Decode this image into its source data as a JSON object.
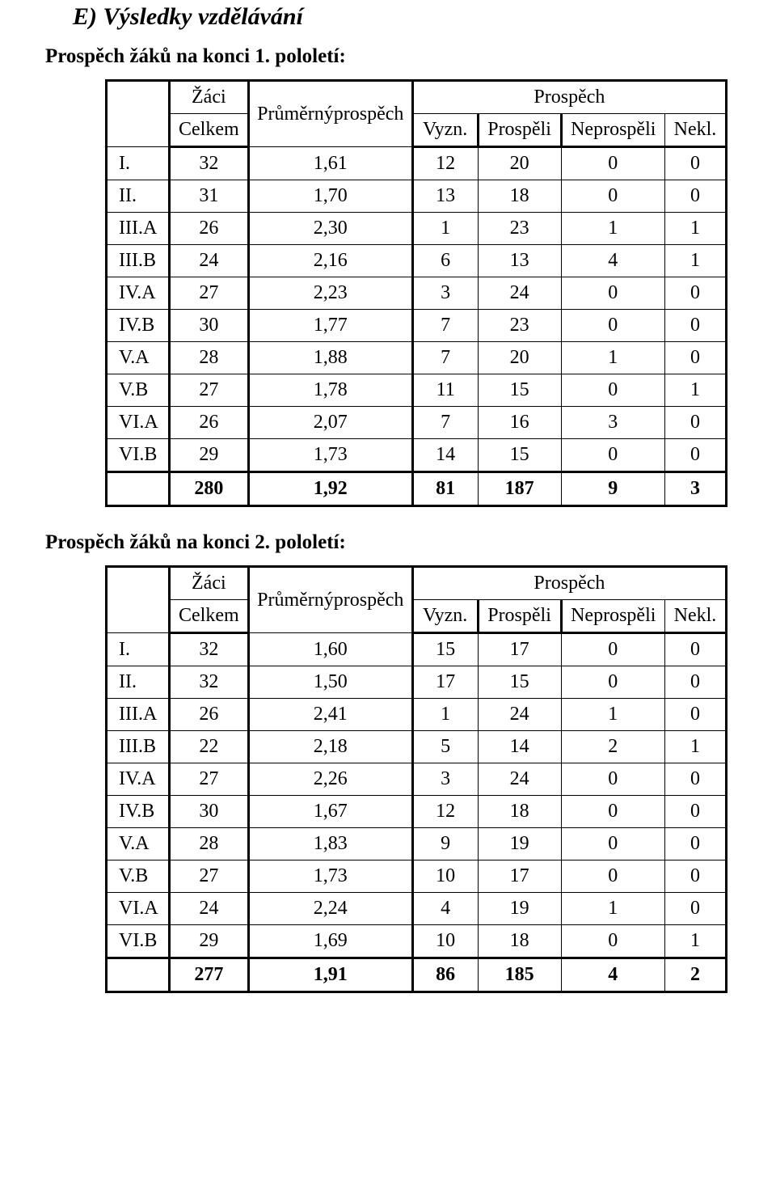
{
  "section_heading": "E) Výsledky vzdělávání",
  "tables": [
    {
      "title": "Prospěch žáků na konci 1. pololetí:",
      "header": {
        "col_blank": "",
        "col_zaci": "Žáci",
        "col_celkem": "Celkem",
        "col_avg": "Průměrnýprospěch",
        "col_prospech": "Prospěch",
        "col_vyzn": "Vyzn.",
        "col_prospeli": "Prospěli",
        "col_neprospeli": "Neprospěli",
        "col_nekl": "Nekl."
      },
      "rows": [
        {
          "label": "I.",
          "zaci": "32",
          "avg": "1,61",
          "v": "12",
          "p": "20",
          "n": "0",
          "k": "0"
        },
        {
          "label": "II.",
          "zaci": "31",
          "avg": "1,70",
          "v": "13",
          "p": "18",
          "n": "0",
          "k": "0"
        },
        {
          "label": "III.A",
          "zaci": "26",
          "avg": "2,30",
          "v": "1",
          "p": "23",
          "n": "1",
          "k": "1"
        },
        {
          "label": "III.B",
          "zaci": "24",
          "avg": "2,16",
          "v": "6",
          "p": "13",
          "n": "4",
          "k": "1"
        },
        {
          "label": "IV.A",
          "zaci": "27",
          "avg": "2,23",
          "v": "3",
          "p": "24",
          "n": "0",
          "k": "0"
        },
        {
          "label": "IV.B",
          "zaci": "30",
          "avg": "1,77",
          "v": "7",
          "p": "23",
          "n": "0",
          "k": "0"
        },
        {
          "label": "V.A",
          "zaci": "28",
          "avg": "1,88",
          "v": "7",
          "p": "20",
          "n": "1",
          "k": "0"
        },
        {
          "label": "V.B",
          "zaci": "27",
          "avg": "1,78",
          "v": "11",
          "p": "15",
          "n": "0",
          "k": "1"
        },
        {
          "label": "VI.A",
          "zaci": "26",
          "avg": "2,07",
          "v": "7",
          "p": "16",
          "n": "3",
          "k": "0"
        },
        {
          "label": "VI.B",
          "zaci": "29",
          "avg": "1,73",
          "v": "14",
          "p": "15",
          "n": "0",
          "k": "0"
        }
      ],
      "total": {
        "label": "",
        "zaci": "280",
        "avg": "1,92",
        "v": "81",
        "p": "187",
        "n": "9",
        "k": "3"
      }
    },
    {
      "title": "Prospěch žáků na konci 2. pololetí:",
      "header": {
        "col_blank": "",
        "col_zaci": "Žáci",
        "col_celkem": "Celkem",
        "col_avg": "Průměrnýprospěch",
        "col_prospech": "Prospěch",
        "col_vyzn": "Vyzn.",
        "col_prospeli": "Prospěli",
        "col_neprospeli": "Neprospěli",
        "col_nekl": "Nekl."
      },
      "rows": [
        {
          "label": "I.",
          "zaci": "32",
          "avg": "1,60",
          "v": "15",
          "p": "17",
          "n": "0",
          "k": "0"
        },
        {
          "label": "II.",
          "zaci": "32",
          "avg": "1,50",
          "v": "17",
          "p": "15",
          "n": "0",
          "k": "0"
        },
        {
          "label": "III.A",
          "zaci": "26",
          "avg": "2,41",
          "v": "1",
          "p": "24",
          "n": "1",
          "k": "0"
        },
        {
          "label": "III.B",
          "zaci": "22",
          "avg": "2,18",
          "v": "5",
          "p": "14",
          "n": "2",
          "k": "1"
        },
        {
          "label": "IV.A",
          "zaci": "27",
          "avg": "2,26",
          "v": "3",
          "p": "24",
          "n": "0",
          "k": "0"
        },
        {
          "label": "IV.B",
          "zaci": "30",
          "avg": "1,67",
          "v": "12",
          "p": "18",
          "n": "0",
          "k": "0"
        },
        {
          "label": "V.A",
          "zaci": "28",
          "avg": "1,83",
          "v": "9",
          "p": "19",
          "n": "0",
          "k": "0"
        },
        {
          "label": "V.B",
          "zaci": "27",
          "avg": "1,73",
          "v": "10",
          "p": "17",
          "n": "0",
          "k": "0"
        },
        {
          "label": "VI.A",
          "zaci": "24",
          "avg": "2,24",
          "v": "4",
          "p": "19",
          "n": "1",
          "k": "0"
        },
        {
          "label": "VI.B",
          "zaci": "29",
          "avg": "1,69",
          "v": "10",
          "p": "18",
          "n": "0",
          "k": "1"
        }
      ],
      "total": {
        "label": "",
        "zaci": "277",
        "avg": "1,91",
        "v": "86",
        "p": "185",
        "n": "4",
        "k": "2"
      }
    }
  ]
}
